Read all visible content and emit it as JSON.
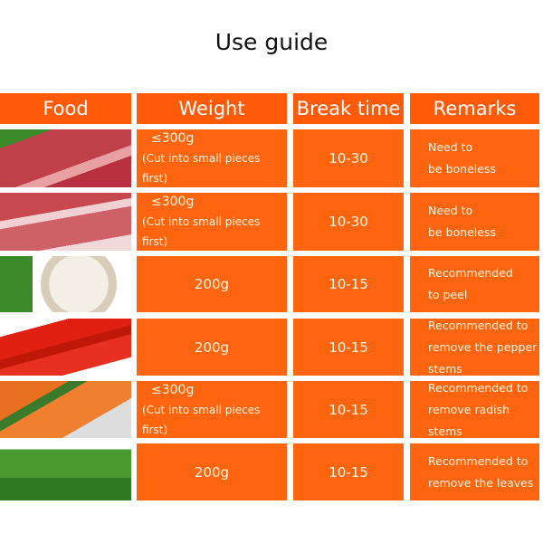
{
  "title": "Use guide",
  "headers": [
    "Food",
    "Weight",
    "Break time",
    "Remarks"
  ],
  "rows": [
    {
      "food": "beef",
      "weight": "≤300g",
      "note": "(Cut into small pieces first)",
      "time": "10-30",
      "remarks": [
        "Need to",
        "be boneless"
      ]
    },
    {
      "food": "pork",
      "weight": "≤300g",
      "note": "(Cut into small pieces first)",
      "time": "10-30",
      "remarks": [
        "Need to",
        "be boneless"
      ]
    },
    {
      "food": "garlic",
      "weight": "200g",
      "note": "",
      "time": "10-15",
      "remarks": [
        "Recommended",
        "to peel"
      ]
    },
    {
      "food": "pepper",
      "weight": "200g",
      "note": "",
      "time": "10-15",
      "remarks": [
        "Recommended to",
        "remove the pepper",
        "stems"
      ]
    },
    {
      "food": "carrot",
      "weight": "≤300g",
      "note": "(Cut into small pieces first)",
      "time": "10-15",
      "remarks": [
        "Recommended to",
        "remove radish",
        "stems"
      ]
    },
    {
      "food": "coriander",
      "weight": "200g",
      "note": "",
      "time": "10-15",
      "remarks": [
        "Recommended to",
        "remove the leaves"
      ]
    }
  ],
  "colors": {
    "cell": "#ff650f",
    "header": "#ff5a08"
  }
}
